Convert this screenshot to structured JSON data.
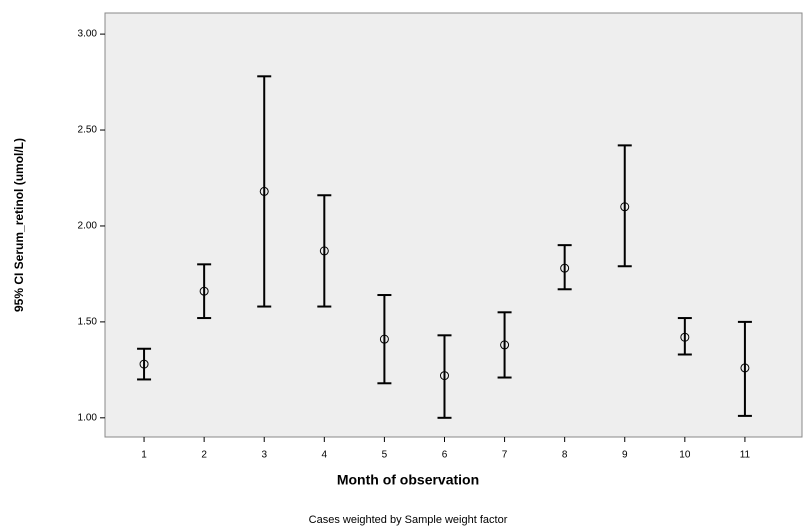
{
  "chart_data": {
    "type": "errorbar",
    "y_label": "95% CI Serum_retinol (umol/L)",
    "x_label": "Month of observation",
    "footnote": "Cases weighted by Sample weight factor",
    "categories": [
      "1",
      "2",
      "3",
      "4",
      "5",
      "6",
      "7",
      "8",
      "9",
      "10",
      "11"
    ],
    "series": [
      {
        "color": "#000000",
        "values": [
          1.28,
          1.66,
          2.18,
          1.87,
          1.41,
          1.22,
          1.38,
          1.78,
          2.1,
          1.42,
          1.26
        ],
        "lower": [
          1.2,
          1.52,
          1.58,
          1.58,
          1.18,
          1.0,
          1.21,
          1.67,
          1.79,
          1.33,
          1.01
        ],
        "upper": [
          1.36,
          1.8,
          2.78,
          2.16,
          1.64,
          1.43,
          1.55,
          1.9,
          2.42,
          1.52,
          1.5
        ]
      }
    ],
    "ylim": [
      0.9,
      3.11
    ],
    "yticks": [
      {
        "value": 1,
        "label": "1.00"
      },
      {
        "value": 1.5,
        "label": "1.50"
      },
      {
        "value": 2,
        "label": "2.00"
      },
      {
        "value": 2.5,
        "label": "2.50"
      },
      {
        "value": 3,
        "label": "3.00"
      }
    ]
  }
}
